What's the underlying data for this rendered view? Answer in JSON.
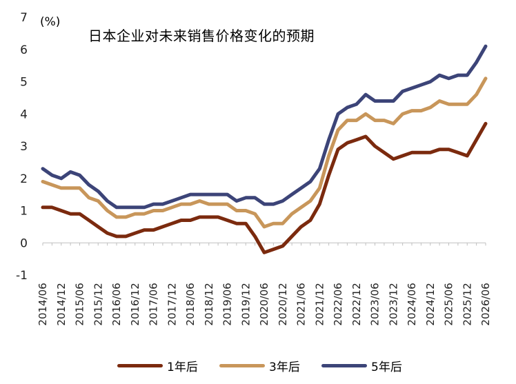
{
  "chart_data": {
    "type": "line",
    "title": "日本企业对未来销售价格变化的预期",
    "ylabel": "(%)",
    "xlabel": "",
    "ylim": [
      -1,
      7
    ],
    "yticks": [
      -1,
      0,
      1,
      2,
      3,
      4,
      5,
      6,
      7
    ],
    "grid": false,
    "legend_position": "bottom",
    "x": [
      "2014/06",
      "2014/09",
      "2014/12",
      "2015/03",
      "2015/06",
      "2015/09",
      "2015/12",
      "2016/03",
      "2016/06",
      "2016/09",
      "2016/12",
      "2017/03",
      "2017/06",
      "2017/09",
      "2017/12",
      "2018/03",
      "2018/06",
      "2018/09",
      "2018/12",
      "2019/03",
      "2019/06",
      "2019/09",
      "2019/12",
      "2020/03",
      "2020/06",
      "2020/09",
      "2020/12",
      "2021/03",
      "2021/06",
      "2021/09",
      "2021/12",
      "2022/03",
      "2022/06",
      "2022/09",
      "2022/12",
      "2023/03",
      "2023/06",
      "2023/09",
      "2023/12",
      "2024/03",
      "2024/06",
      "2024/09",
      "2024/12",
      "2025/03",
      "2025/06",
      "2025/09",
      "2025/12",
      "2026/03",
      "2026/06"
    ],
    "xtick_labels": [
      "2014/06",
      "2014/12",
      "2015/06",
      "2015/12",
      "2016/06",
      "2016/12",
      "2017/06",
      "2017/12",
      "2018/06",
      "2018/12",
      "2019/06",
      "2019/12",
      "2020/06",
      "2020/12",
      "2021/06",
      "2021/12",
      "2022/06",
      "2022/12",
      "2023/06",
      "2023/12",
      "2024/06",
      "2024/12",
      "2025/06",
      "2025/12",
      "2026/06"
    ],
    "series": [
      {
        "name": "1年后",
        "color": "#7b2a0e",
        "values": [
          1.1,
          1.1,
          1.0,
          0.9,
          0.9,
          0.7,
          0.5,
          0.3,
          0.2,
          0.2,
          0.3,
          0.4,
          0.4,
          0.5,
          0.6,
          0.7,
          0.7,
          0.8,
          0.8,
          0.8,
          0.7,
          0.6,
          0.6,
          0.2,
          -0.3,
          -0.2,
          -0.1,
          0.2,
          0.5,
          0.7,
          1.2,
          2.1,
          2.9,
          3.1,
          3.2,
          3.3,
          3.0,
          2.8,
          2.6,
          2.7,
          2.8,
          2.8,
          2.8,
          2.9,
          2.9,
          2.8,
          2.7,
          3.2,
          3.7
        ]
      },
      {
        "name": "3年后",
        "color": "#c8965a",
        "values": [
          1.9,
          1.8,
          1.7,
          1.7,
          1.7,
          1.4,
          1.3,
          1.0,
          0.8,
          0.8,
          0.9,
          0.9,
          1.0,
          1.0,
          1.1,
          1.2,
          1.2,
          1.3,
          1.2,
          1.2,
          1.2,
          1.0,
          1.0,
          0.9,
          0.5,
          0.6,
          0.6,
          0.9,
          1.1,
          1.3,
          1.7,
          2.7,
          3.5,
          3.8,
          3.8,
          4.0,
          3.8,
          3.8,
          3.7,
          4.0,
          4.1,
          4.1,
          4.2,
          4.4,
          4.3,
          4.3,
          4.3,
          4.6,
          5.1
        ]
      },
      {
        "name": "5年后",
        "color": "#3c4478",
        "values": [
          2.3,
          2.1,
          2.0,
          2.2,
          2.1,
          1.8,
          1.6,
          1.3,
          1.1,
          1.1,
          1.1,
          1.1,
          1.2,
          1.2,
          1.3,
          1.4,
          1.5,
          1.5,
          1.5,
          1.5,
          1.5,
          1.3,
          1.4,
          1.4,
          1.2,
          1.2,
          1.3,
          1.5,
          1.7,
          1.9,
          2.3,
          3.2,
          4.0,
          4.2,
          4.3,
          4.6,
          4.4,
          4.4,
          4.4,
          4.7,
          4.8,
          4.9,
          5.0,
          5.2,
          5.1,
          5.2,
          5.2,
          5.6,
          6.1
        ]
      }
    ]
  }
}
